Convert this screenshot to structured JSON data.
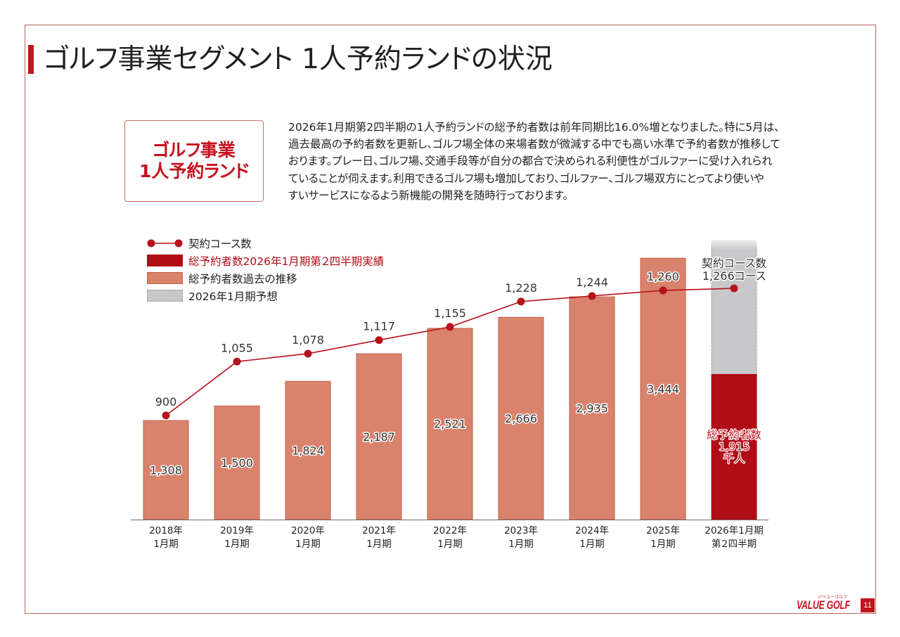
{
  "header": {
    "title": "ゴルフ事業セグメント 1人予約ランドの状況"
  },
  "segment_box": {
    "line1": "ゴルフ事業",
    "line2": "1人予約ランド"
  },
  "description": {
    "lines": [
      "2026年1月期第2四半期の1人予約ランドの総予約者数は前年同期比16.0%増となりました。特に5月は、",
      "過去最高の予約者数を更新し、ゴルフ場全体の来場者数が微減する中でも高い水準で予約者数が推移して",
      "おります。プレー日、ゴルフ場、交通手段等が自分の都合で決められる利便性がゴルファーに受け入れられ",
      "ていることが伺えます。利用できるゴルフ場も増加しており、ゴルファー、ゴルフ場双方にとってより使いや",
      "すいサービスになるよう新機能の開発を随時行っております。"
    ]
  },
  "footer": {
    "logo_text": "VALUE GOLF",
    "logo_subtext": "バリューゴルフ",
    "page_number": "11"
  },
  "colors": {
    "accent_red": "#c0141f",
    "actual_bar": "#b00d17",
    "past_bar": "#d9836d",
    "past_bar_edge": "#c4624c",
    "forecast_bar": "#c8c8ca",
    "line": "#b5121b",
    "frame": "#b8665c"
  },
  "chart_data": {
    "type": "bar",
    "categories": [
      [
        "2018年",
        "1月期"
      ],
      [
        "2019年",
        "1月期"
      ],
      [
        "2020年",
        "1月期"
      ],
      [
        "2021年",
        "1月期"
      ],
      [
        "2022年",
        "1月期"
      ],
      [
        "2023年",
        "1月期"
      ],
      [
        "2024年",
        "1月期"
      ],
      [
        "2025年",
        "1月期"
      ],
      [
        "2026年1月期",
        "第２四半期"
      ]
    ],
    "series": [
      {
        "name": "契約コース数",
        "type": "line",
        "values": [
          900,
          1055,
          1078,
          1117,
          1155,
          1228,
          1244,
          1260,
          1266
        ],
        "end_label": [
          "契約コース数",
          "1,266コース"
        ]
      },
      {
        "name": "総予約者数2026年1月期第２四半期実績",
        "type": "bar",
        "values": [
          null,
          null,
          null,
          null,
          null,
          null,
          null,
          null,
          1915
        ],
        "label_lines": [
          "総予約者数",
          "1,915",
          "千人"
        ]
      },
      {
        "name": "総予約者数過去の推移",
        "type": "bar",
        "values": [
          1308,
          1500,
          1824,
          2187,
          2521,
          2666,
          2935,
          3444,
          null
        ]
      },
      {
        "name": "2026年1月期予想",
        "type": "bar",
        "values": [
          null,
          null,
          null,
          null,
          null,
          null,
          null,
          null,
          3680
        ]
      }
    ],
    "ylim": [
      0,
      3700
    ],
    "y2lim": [
      600,
      1410
    ],
    "grid": false,
    "legend_position": "top-left"
  }
}
